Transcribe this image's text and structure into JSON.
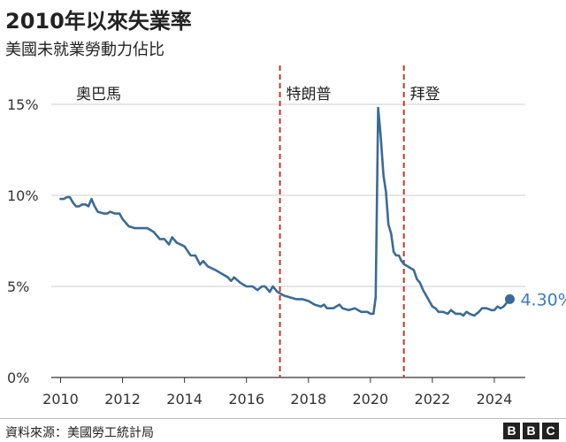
{
  "title": "2010年以來失業率",
  "subtitle": "美國未就業勞動力佔比",
  "source": "資料來源：美國勞工統計局",
  "logo": [
    "B",
    "B",
    "C"
  ],
  "colors": {
    "line": "#3a6b96",
    "divider": "#c0392b",
    "label": "#3a7bbf",
    "grid": "#cccccc",
    "axis": "#333333"
  },
  "chart_data": {
    "type": "line",
    "title": "2010年以來失業率",
    "subtitle": "美國未就業勞動力佔比",
    "xlabel": "",
    "ylabel": "",
    "xlim": [
      2009.7,
      2025.0
    ],
    "ylim": [
      0,
      15
    ],
    "x_ticks": [
      2010,
      2012,
      2014,
      2016,
      2018,
      2020,
      2022,
      2024
    ],
    "y_ticks": [
      0,
      5,
      10,
      15
    ],
    "y_tick_labels": [
      "0%",
      "5%",
      "10%",
      "15%"
    ],
    "grid": true,
    "legend": "none",
    "eras": [
      {
        "label": "奧巴馬",
        "start": 2009.7
      },
      {
        "label": "特朗普",
        "start": 2017.08
      },
      {
        "label": "拜登",
        "start": 2021.08
      }
    ],
    "end_label": "4.30%",
    "series": [
      {
        "values": [
          [
            2010.0,
            9.8
          ],
          [
            2010.1,
            9.8
          ],
          [
            2010.2,
            9.9
          ],
          [
            2010.3,
            9.9
          ],
          [
            2010.4,
            9.6
          ],
          [
            2010.5,
            9.4
          ],
          [
            2010.6,
            9.4
          ],
          [
            2010.7,
            9.5
          ],
          [
            2010.8,
            9.5
          ],
          [
            2010.9,
            9.4
          ],
          [
            2011.0,
            9.8
          ],
          [
            2011.1,
            9.4
          ],
          [
            2011.2,
            9.1
          ],
          [
            2011.4,
            9.0
          ],
          [
            2011.5,
            9.0
          ],
          [
            2011.6,
            9.1
          ],
          [
            2011.75,
            9.0
          ],
          [
            2011.9,
            9.0
          ],
          [
            2012.0,
            8.7
          ],
          [
            2012.2,
            8.3
          ],
          [
            2012.4,
            8.2
          ],
          [
            2012.6,
            8.2
          ],
          [
            2012.8,
            8.2
          ],
          [
            2013.0,
            8.0
          ],
          [
            2013.2,
            7.6
          ],
          [
            2013.35,
            7.6
          ],
          [
            2013.5,
            7.3
          ],
          [
            2013.6,
            7.7
          ],
          [
            2013.75,
            7.4
          ],
          [
            2014.0,
            7.2
          ],
          [
            2014.2,
            6.7
          ],
          [
            2014.35,
            6.7
          ],
          [
            2014.5,
            6.2
          ],
          [
            2014.6,
            6.4
          ],
          [
            2014.75,
            6.1
          ],
          [
            2015.0,
            5.9
          ],
          [
            2015.2,
            5.7
          ],
          [
            2015.4,
            5.5
          ],
          [
            2015.5,
            5.3
          ],
          [
            2015.6,
            5.5
          ],
          [
            2015.8,
            5.2
          ],
          [
            2016.0,
            5.0
          ],
          [
            2016.2,
            5.0
          ],
          [
            2016.35,
            4.8
          ],
          [
            2016.5,
            5.0
          ],
          [
            2016.6,
            5.0
          ],
          [
            2016.75,
            4.7
          ],
          [
            2016.85,
            5.0
          ],
          [
            2017.0,
            4.7
          ],
          [
            2017.2,
            4.5
          ],
          [
            2017.4,
            4.4
          ],
          [
            2017.6,
            4.3
          ],
          [
            2017.8,
            4.3
          ],
          [
            2018.0,
            4.2
          ],
          [
            2018.2,
            4.0
          ],
          [
            2018.4,
            3.9
          ],
          [
            2018.5,
            4.0
          ],
          [
            2018.6,
            3.8
          ],
          [
            2018.8,
            3.8
          ],
          [
            2019.0,
            4.0
          ],
          [
            2019.1,
            3.8
          ],
          [
            2019.3,
            3.7
          ],
          [
            2019.5,
            3.8
          ],
          [
            2019.7,
            3.6
          ],
          [
            2019.9,
            3.6
          ],
          [
            2020.0,
            3.5
          ],
          [
            2020.1,
            3.5
          ],
          [
            2020.17,
            4.4
          ],
          [
            2020.25,
            14.8
          ],
          [
            2020.33,
            13.3
          ],
          [
            2020.42,
            11.1
          ],
          [
            2020.5,
            10.2
          ],
          [
            2020.58,
            8.4
          ],
          [
            2020.67,
            7.9
          ],
          [
            2020.75,
            6.9
          ],
          [
            2020.83,
            6.7
          ],
          [
            2020.92,
            6.7
          ],
          [
            2021.0,
            6.4
          ],
          [
            2021.1,
            6.2
          ],
          [
            2021.2,
            6.1
          ],
          [
            2021.3,
            6.0
          ],
          [
            2021.4,
            5.9
          ],
          [
            2021.5,
            5.4
          ],
          [
            2021.6,
            5.2
          ],
          [
            2021.7,
            4.8
          ],
          [
            2021.8,
            4.5
          ],
          [
            2021.9,
            4.2
          ],
          [
            2022.0,
            3.9
          ],
          [
            2022.1,
            3.8
          ],
          [
            2022.2,
            3.6
          ],
          [
            2022.35,
            3.6
          ],
          [
            2022.5,
            3.5
          ],
          [
            2022.6,
            3.7
          ],
          [
            2022.75,
            3.5
          ],
          [
            2022.9,
            3.5
          ],
          [
            2023.0,
            3.4
          ],
          [
            2023.1,
            3.6
          ],
          [
            2023.2,
            3.5
          ],
          [
            2023.35,
            3.4
          ],
          [
            2023.5,
            3.6
          ],
          [
            2023.6,
            3.8
          ],
          [
            2023.75,
            3.8
          ],
          [
            2023.9,
            3.7
          ],
          [
            2024.0,
            3.7
          ],
          [
            2024.1,
            3.9
          ],
          [
            2024.2,
            3.8
          ],
          [
            2024.3,
            3.9
          ],
          [
            2024.4,
            4.1
          ],
          [
            2024.5,
            4.3
          ]
        ]
      }
    ]
  }
}
